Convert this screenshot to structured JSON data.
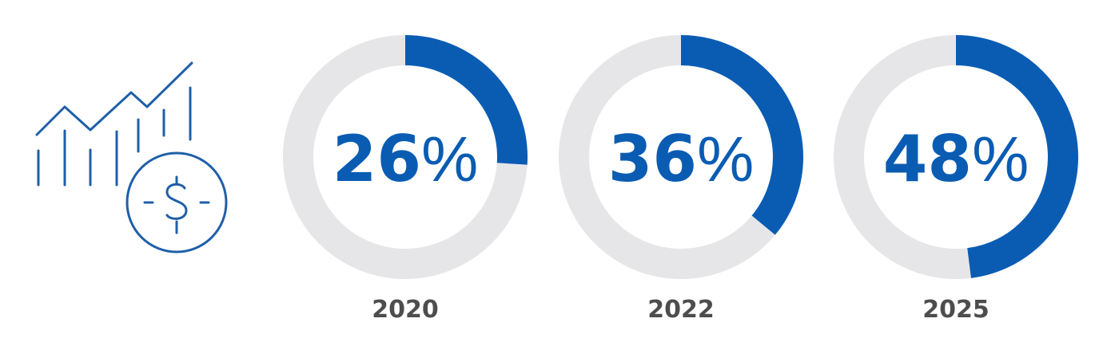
{
  "colors": {
    "accent": "#0a5cb3",
    "track": "#e6e6e9",
    "year_text": "#4d4d4f",
    "icon": "#1f5fa8"
  },
  "icon": "growth-chart-dollar-icon",
  "chart_data": {
    "type": "pie",
    "categories": [
      "2020",
      "2022",
      "2025"
    ],
    "values": [
      26,
      36,
      48
    ],
    "unit": "%",
    "max": 100,
    "value_labels": [
      "26",
      "36",
      "48"
    ],
    "title": "",
    "xlabel": "",
    "ylabel": ""
  }
}
